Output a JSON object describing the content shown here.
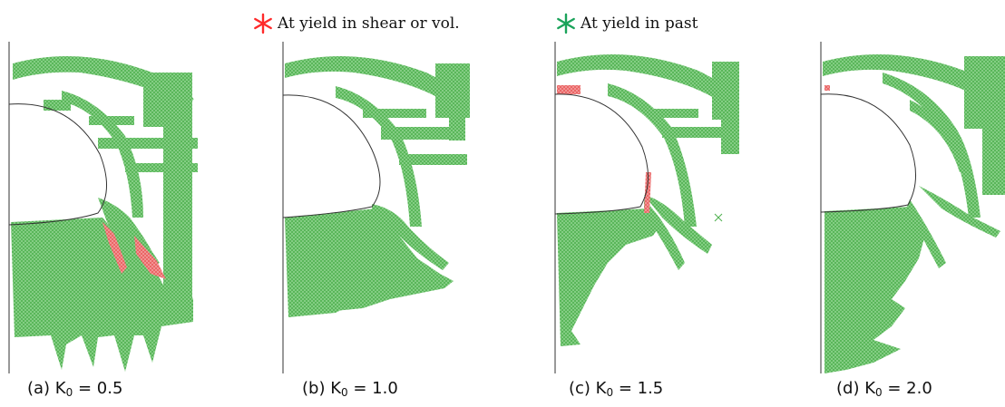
{
  "legend": {
    "red_label": "At yield in shear or vol.",
    "green_label": "At yield in past",
    "red_color": "#ff2a2a",
    "green_color": "#1aa35a",
    "red_icon": "asterisk-icon",
    "green_icon": "asterisk-icon"
  },
  "panels": [
    {
      "id": "a",
      "prefix": "(a) K",
      "subscript": "0",
      "suffix": " = 0.5"
    },
    {
      "id": "b",
      "prefix": "(b) K",
      "subscript": "0",
      "suffix": " = 1.0"
    },
    {
      "id": "c",
      "prefix": "(c) K",
      "subscript": "0",
      "suffix": " = 1.5"
    },
    {
      "id": "d",
      "prefix": "(d) K",
      "subscript": "0",
      "suffix": " = 2.0"
    }
  ],
  "colors": {
    "yield_past": "#6dc56d",
    "yield_now": "#f08a8a",
    "outline": "#333333"
  }
}
